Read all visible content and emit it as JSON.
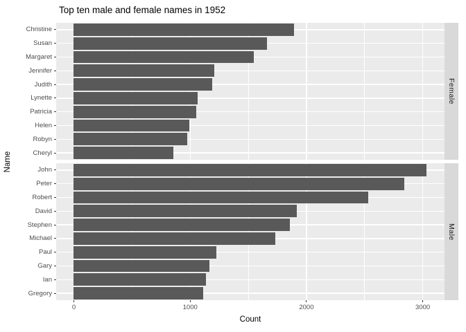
{
  "title": "Top ten male and female names in 1952",
  "x_axis": {
    "label": "Count",
    "ticks": [
      {
        "value": 0,
        "label": "0"
      },
      {
        "value": 1000,
        "label": "1000"
      },
      {
        "value": 2000,
        "label": "2000"
      },
      {
        "value": 3000,
        "label": "3000"
      }
    ],
    "minor_ticks": [
      500,
      1500,
      2500
    ],
    "domain_min": -152,
    "domain_max": 3187
  },
  "y_axis": {
    "label": "Name"
  },
  "chart_data": {
    "type": "bar",
    "orientation": "horizontal",
    "title": "Top ten male and female names in 1952",
    "xlabel": "Count",
    "ylabel": "Name",
    "xlim": [
      0,
      3200
    ],
    "grid": true,
    "legend": "none",
    "facet_position": "right",
    "facets": [
      {
        "label": "Female",
        "categories": [
          "Christine",
          "Susan",
          "Margaret",
          "Jennifer",
          "Judith",
          "Lynette",
          "Patricia",
          "Helen",
          "Robyn",
          "Cheryl"
        ],
        "values": [
          1895,
          1660,
          1545,
          1210,
          1190,
          1065,
          1055,
          995,
          975,
          855
        ]
      },
      {
        "label": "Male",
        "categories": [
          "John",
          "Peter",
          "Robert",
          "David",
          "Stephen",
          "Michael",
          "Paul",
          "Gary",
          "Ian",
          "Gregory"
        ],
        "values": [
          3035,
          2840,
          2530,
          1920,
          1860,
          1735,
          1225,
          1165,
          1135,
          1115
        ]
      }
    ]
  },
  "colors": {
    "bar": "#595959",
    "panel_background": "#EBEBEB",
    "strip_background": "#D9D9D9",
    "gridline": "#FFFFFF",
    "axis_text": "#4D4D4D",
    "strip_text": "#1A1A1A",
    "tick_mark": "#333333",
    "title_text": "#000000"
  }
}
